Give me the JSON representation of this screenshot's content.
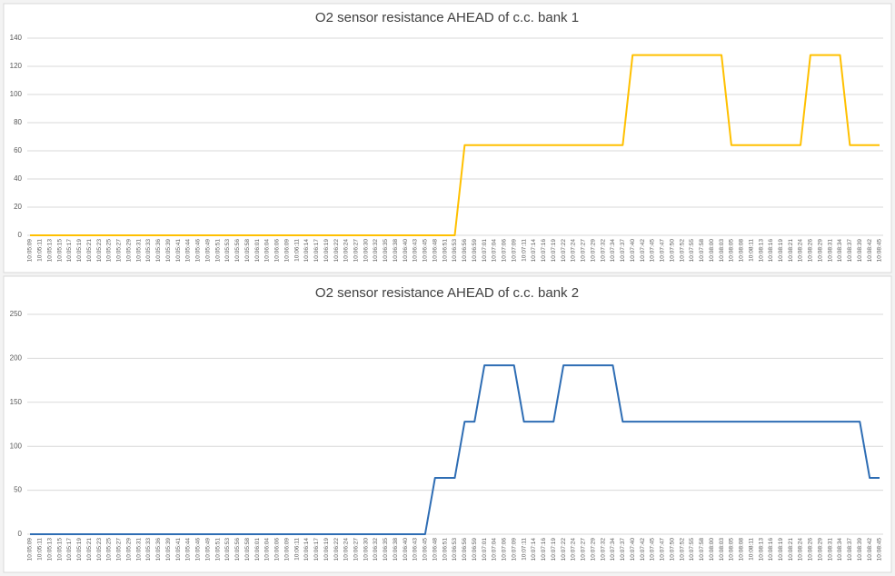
{
  "chart_data": [
    {
      "type": "line",
      "title": "O2 sensor resistance AHEAD of c.c. bank 1",
      "categories": [
        "10:05:09",
        "10:05:11",
        "10:05:13",
        "10:05:15",
        "10:05:17",
        "10:05:19",
        "10:05:21",
        "10:05:23",
        "10:05:25",
        "10:05:27",
        "10:05:29",
        "10:05:31",
        "10:05:33",
        "10:05:36",
        "10:05:39",
        "10:05:41",
        "10:05:44",
        "10:05:46",
        "10:05:49",
        "10:05:51",
        "10:05:53",
        "10:05:56",
        "10:05:58",
        "10:06:01",
        "10:06:04",
        "10:06:06",
        "10:06:09",
        "10:06:11",
        "10:06:14",
        "10:06:17",
        "10:06:19",
        "10:06:22",
        "10:06:24",
        "10:06:27",
        "10:06:30",
        "10:06:32",
        "10:06:35",
        "10:06:38",
        "10:06:40",
        "10:06:43",
        "10:06:45",
        "10:06:48",
        "10:06:51",
        "10:06:53",
        "10:06:56",
        "10:06:59",
        "10:07:01",
        "10:07:04",
        "10:07:06",
        "10:07:09",
        "10:07:11",
        "10:07:14",
        "10:07:16",
        "10:07:19",
        "10:07:22",
        "10:07:24",
        "10:07:27",
        "10:07:29",
        "10:07:32",
        "10:07:34",
        "10:07:37",
        "10:07:40",
        "10:07:42",
        "10:07:45",
        "10:07:47",
        "10:07:50",
        "10:07:52",
        "10:07:55",
        "10:07:58",
        "10:08:00",
        "10:08:03",
        "10:08:05",
        "10:08:08",
        "10:08:11",
        "10:08:13",
        "10:08:16",
        "10:08:19",
        "10:08:21",
        "10:08:24",
        "10:08:26",
        "10:08:29",
        "10:08:31",
        "10:08:34",
        "10:08:37",
        "10:08:39",
        "10:08:42",
        "10:08:45"
      ],
      "values": [
        0,
        0,
        0,
        0,
        0,
        0,
        0,
        0,
        0,
        0,
        0,
        0,
        0,
        0,
        0,
        0,
        0,
        0,
        0,
        0,
        0,
        0,
        0,
        0,
        0,
        0,
        0,
        0,
        0,
        0,
        0,
        0,
        0,
        0,
        0,
        0,
        0,
        0,
        0,
        0,
        0,
        0,
        0,
        0,
        64,
        64,
        64,
        64,
        64,
        64,
        64,
        64,
        64,
        64,
        64,
        64,
        64,
        64,
        64,
        64,
        64,
        128,
        128,
        128,
        128,
        128,
        128,
        128,
        128,
        128,
        128,
        64,
        64,
        64,
        64,
        64,
        64,
        64,
        64,
        128,
        128,
        128,
        128,
        64,
        64,
        64,
        64
      ],
      "color": "#ffc000",
      "ylim": [
        0,
        140
      ],
      "yticks": [
        0,
        20,
        40,
        60,
        80,
        100,
        120,
        140
      ],
      "grid": true
    },
    {
      "type": "line",
      "title": "O2 sensor resistance AHEAD of c.c. bank 2",
      "categories": [
        "10:05:09",
        "10:05:11",
        "10:05:13",
        "10:05:15",
        "10:05:17",
        "10:05:19",
        "10:05:21",
        "10:05:23",
        "10:05:25",
        "10:05:27",
        "10:05:29",
        "10:05:31",
        "10:05:33",
        "10:05:36",
        "10:05:39",
        "10:05:41",
        "10:05:44",
        "10:05:46",
        "10:05:49",
        "10:05:51",
        "10:05:53",
        "10:05:56",
        "10:05:58",
        "10:06:01",
        "10:06:04",
        "10:06:06",
        "10:06:09",
        "10:06:11",
        "10:06:14",
        "10:06:17",
        "10:06:19",
        "10:06:22",
        "10:06:24",
        "10:06:27",
        "10:06:30",
        "10:06:32",
        "10:06:35",
        "10:06:38",
        "10:06:40",
        "10:06:43",
        "10:06:45",
        "10:06:48",
        "10:06:51",
        "10:06:53",
        "10:06:56",
        "10:06:59",
        "10:07:01",
        "10:07:04",
        "10:07:06",
        "10:07:09",
        "10:07:11",
        "10:07:14",
        "10:07:16",
        "10:07:19",
        "10:07:22",
        "10:07:24",
        "10:07:27",
        "10:07:29",
        "10:07:32",
        "10:07:34",
        "10:07:37",
        "10:07:40",
        "10:07:42",
        "10:07:45",
        "10:07:47",
        "10:07:50",
        "10:07:52",
        "10:07:55",
        "10:07:58",
        "10:08:00",
        "10:08:03",
        "10:08:05",
        "10:08:08",
        "10:08:11",
        "10:08:13",
        "10:08:16",
        "10:08:19",
        "10:08:21",
        "10:08:24",
        "10:08:26",
        "10:08:29",
        "10:08:31",
        "10:08:34",
        "10:08:37",
        "10:08:39",
        "10:08:42",
        "10:08:45"
      ],
      "values": [
        0,
        0,
        0,
        0,
        0,
        0,
        0,
        0,
        0,
        0,
        0,
        0,
        0,
        0,
        0,
        0,
        0,
        0,
        0,
        0,
        0,
        0,
        0,
        0,
        0,
        0,
        0,
        0,
        0,
        0,
        0,
        0,
        0,
        0,
        0,
        0,
        0,
        0,
        0,
        0,
        0,
        64,
        64,
        64,
        128,
        128,
        192,
        192,
        192,
        192,
        128,
        128,
        128,
        128,
        192,
        192,
        192,
        192,
        192,
        192,
        128,
        128,
        128,
        128,
        128,
        128,
        128,
        128,
        128,
        128,
        128,
        128,
        128,
        128,
        128,
        128,
        128,
        128,
        128,
        128,
        128,
        128,
        128,
        128,
        128,
        64,
        64
      ],
      "color": "#2e6db4",
      "ylim": [
        0,
        250
      ],
      "yticks": [
        0,
        50,
        100,
        150,
        200,
        250
      ],
      "grid": true
    }
  ]
}
